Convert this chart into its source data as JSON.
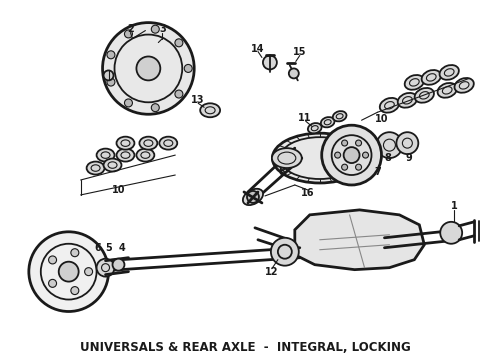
{
  "title": "UNIVERSALS & REAR AXLE  -  INTEGRAL, LOCKING",
  "bg_color": "#ffffff",
  "fg_color": "#1a1a1a",
  "title_fontsize": 8.5,
  "fig_width": 4.9,
  "fig_height": 3.6,
  "dpi": 100
}
